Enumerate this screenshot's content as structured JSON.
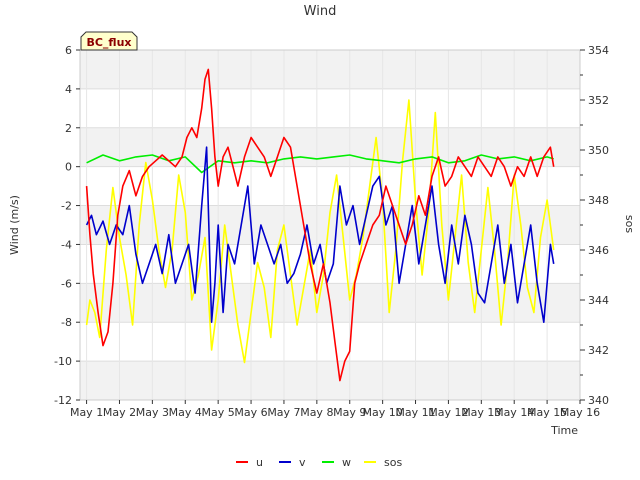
{
  "chart_data": {
    "type": "line",
    "title": "Wind",
    "badge": "BC_flux",
    "xlabel": "Time",
    "ylabel": "Wind (m/s)",
    "y2label": "sos",
    "xlim": [
      0.8,
      16
    ],
    "ylim": [
      -12,
      6
    ],
    "y2lim": [
      340,
      354
    ],
    "x_ticks": [
      {
        "v": 1,
        "label": "May 1"
      },
      {
        "v": 2,
        "label": "May 2"
      },
      {
        "v": 3,
        "label": "May 3"
      },
      {
        "v": 4,
        "label": "May 4"
      },
      {
        "v": 5,
        "label": "May 5"
      },
      {
        "v": 6,
        "label": "May 6"
      },
      {
        "v": 7,
        "label": "May 7"
      },
      {
        "v": 8,
        "label": "May 8"
      },
      {
        "v": 9,
        "label": "May 9"
      },
      {
        "v": 10,
        "label": "May 10"
      },
      {
        "v": 11,
        "label": "May 11"
      },
      {
        "v": 12,
        "label": "May 12"
      },
      {
        "v": 13,
        "label": "May 13"
      },
      {
        "v": 14,
        "label": "May 14"
      },
      {
        "v": 15,
        "label": "May 15"
      },
      {
        "v": 16,
        "label": "May 16"
      }
    ],
    "y_ticks": [
      -12,
      -10,
      -8,
      -6,
      -4,
      -2,
      0,
      2,
      4,
      6
    ],
    "y2_ticks": [
      340,
      342,
      344,
      346,
      348,
      350,
      352,
      354
    ],
    "grid": true,
    "legend_position": "bottom-center",
    "series": [
      {
        "name": "u",
        "color": "#ff0000",
        "axis": "left",
        "x": [
          1.0,
          1.1,
          1.2,
          1.35,
          1.5,
          1.65,
          1.8,
          1.95,
          2.1,
          2.3,
          2.5,
          2.7,
          2.9,
          3.1,
          3.3,
          3.5,
          3.7,
          3.9,
          4.05,
          4.2,
          4.35,
          4.5,
          4.6,
          4.7,
          4.8,
          4.9,
          5.0,
          5.15,
          5.3,
          5.45,
          5.6,
          5.8,
          6.0,
          6.2,
          6.4,
          6.6,
          6.8,
          7.0,
          7.2,
          7.4,
          7.6,
          7.8,
          8.0,
          8.2,
          8.4,
          8.55,
          8.7,
          8.85,
          9.0,
          9.15,
          9.3,
          9.5,
          9.7,
          9.9,
          10.1,
          10.3,
          10.5,
          10.7,
          10.9,
          11.1,
          11.3,
          11.5,
          11.7,
          11.9,
          12.1,
          12.3,
          12.5,
          12.7,
          12.9,
          13.1,
          13.3,
          13.5,
          13.7,
          13.9,
          14.1,
          14.3,
          14.5,
          14.7,
          14.9,
          15.1,
          15.2
        ],
        "y": [
          -1.0,
          -3.5,
          -5.5,
          -7.5,
          -9.2,
          -8.5,
          -6.0,
          -2.5,
          -1.0,
          -0.2,
          -1.5,
          -0.5,
          0.0,
          0.3,
          0.6,
          0.3,
          0.0,
          0.5,
          1.5,
          2.0,
          1.5,
          3.0,
          4.5,
          5.0,
          3.0,
          0.5,
          -1.0,
          0.5,
          1.0,
          0.0,
          -1.0,
          0.5,
          1.5,
          1.0,
          0.5,
          -0.5,
          0.5,
          1.5,
          1.0,
          -1.0,
          -3.0,
          -5.0,
          -6.5,
          -5.0,
          -7.0,
          -9.0,
          -11.0,
          -10.0,
          -9.5,
          -6.0,
          -5.0,
          -4.0,
          -3.0,
          -2.5,
          -1.0,
          -2.0,
          -3.0,
          -4.0,
          -3.0,
          -1.5,
          -2.5,
          -0.5,
          0.5,
          -1.0,
          -0.5,
          0.5,
          0.0,
          -0.5,
          0.5,
          0.0,
          -0.5,
          0.5,
          0.0,
          -1.0,
          0.0,
          -0.5,
          0.5,
          -0.5,
          0.5,
          1.0,
          0.0
        ]
      },
      {
        "name": "v",
        "color": "#0000cc",
        "axis": "left",
        "x": [
          1.0,
          1.15,
          1.3,
          1.5,
          1.7,
          1.9,
          2.1,
          2.3,
          2.5,
          2.7,
          2.9,
          3.1,
          3.3,
          3.5,
          3.7,
          3.9,
          4.1,
          4.3,
          4.5,
          4.65,
          4.8,
          4.9,
          5.0,
          5.15,
          5.3,
          5.5,
          5.7,
          5.9,
          6.1,
          6.3,
          6.5,
          6.7,
          6.9,
          7.1,
          7.3,
          7.5,
          7.7,
          7.9,
          8.1,
          8.3,
          8.5,
          8.7,
          8.9,
          9.1,
          9.3,
          9.5,
          9.7,
          9.9,
          10.1,
          10.3,
          10.5,
          10.7,
          10.9,
          11.1,
          11.3,
          11.5,
          11.7,
          11.9,
          12.1,
          12.3,
          12.5,
          12.7,
          12.9,
          13.1,
          13.3,
          13.5,
          13.7,
          13.9,
          14.1,
          14.3,
          14.5,
          14.7,
          14.9,
          15.1,
          15.2
        ],
        "y": [
          -3.0,
          -2.5,
          -3.5,
          -2.8,
          -4.0,
          -3.0,
          -3.5,
          -2.0,
          -4.5,
          -6.0,
          -5.0,
          -4.0,
          -5.5,
          -3.5,
          -6.0,
          -5.0,
          -4.0,
          -6.5,
          -2.0,
          1.0,
          -8.0,
          -6.0,
          -3.0,
          -7.5,
          -4.0,
          -5.0,
          -3.0,
          -1.0,
          -5.0,
          -3.0,
          -4.0,
          -5.0,
          -4.0,
          -6.0,
          -5.5,
          -4.5,
          -3.0,
          -5.0,
          -4.0,
          -6.0,
          -5.0,
          -1.0,
          -3.0,
          -2.0,
          -4.0,
          -2.5,
          -1.0,
          -0.5,
          -3.0,
          -2.0,
          -6.0,
          -4.0,
          -2.0,
          -5.0,
          -3.0,
          -1.0,
          -4.0,
          -6.0,
          -3.0,
          -5.0,
          -2.5,
          -4.0,
          -6.5,
          -7.0,
          -5.0,
          -3.0,
          -6.0,
          -4.0,
          -7.0,
          -5.0,
          -3.0,
          -6.0,
          -8.0,
          -4.0,
          -5.0
        ]
      },
      {
        "name": "w",
        "color": "#00ee00",
        "axis": "left",
        "x": [
          1.0,
          1.5,
          2.0,
          2.5,
          3.0,
          3.5,
          4.0,
          4.5,
          5.0,
          5.5,
          6.0,
          6.5,
          7.0,
          7.5,
          8.0,
          8.5,
          9.0,
          9.5,
          10.0,
          10.5,
          11.0,
          11.5,
          12.0,
          12.5,
          13.0,
          13.5,
          14.0,
          14.5,
          15.0,
          15.2
        ],
        "y": [
          0.2,
          0.6,
          0.3,
          0.5,
          0.6,
          0.3,
          0.5,
          -0.3,
          0.3,
          0.2,
          0.3,
          0.2,
          0.4,
          0.5,
          0.4,
          0.5,
          0.6,
          0.4,
          0.3,
          0.2,
          0.4,
          0.5,
          0.2,
          0.3,
          0.6,
          0.4,
          0.5,
          0.3,
          0.5,
          0.4
        ]
      },
      {
        "name": "sos",
        "color": "#ffff00",
        "axis": "right",
        "x": [
          1.0,
          1.1,
          1.25,
          1.4,
          1.6,
          1.8,
          2.0,
          2.2,
          2.4,
          2.6,
          2.8,
          3.0,
          3.2,
          3.4,
          3.6,
          3.8,
          4.0,
          4.2,
          4.4,
          4.6,
          4.8,
          5.0,
          5.2,
          5.4,
          5.6,
          5.8,
          6.0,
          6.2,
          6.4,
          6.6,
          6.8,
          7.0,
          7.2,
          7.4,
          7.6,
          7.8,
          8.0,
          8.2,
          8.4,
          8.6,
          8.8,
          9.0,
          9.2,
          9.4,
          9.6,
          9.8,
          10.0,
          10.2,
          10.4,
          10.6,
          10.8,
          11.0,
          11.2,
          11.4,
          11.6,
          11.8,
          12.0,
          12.2,
          12.4,
          12.6,
          12.8,
          13.0,
          13.2,
          13.4,
          13.6,
          13.8,
          14.0,
          14.2,
          14.4,
          14.6,
          14.8,
          15.0,
          15.2
        ],
        "y": [
          343.0,
          344.0,
          343.5,
          342.5,
          346.0,
          348.5,
          346.5,
          345.0,
          343.0,
          347.0,
          349.5,
          348.0,
          346.0,
          344.5,
          346.0,
          349.0,
          347.5,
          344.0,
          345.0,
          346.5,
          342.0,
          344.0,
          347.0,
          345.0,
          343.0,
          341.5,
          343.5,
          345.5,
          344.5,
          342.5,
          346.0,
          347.0,
          345.0,
          343.0,
          344.5,
          346.0,
          343.5,
          345.0,
          347.5,
          349.0,
          346.5,
          344.0,
          345.0,
          346.5,
          348.5,
          350.5,
          348.0,
          343.5,
          346.0,
          349.5,
          352.0,
          348.0,
          345.0,
          347.5,
          351.5,
          347.0,
          344.0,
          346.5,
          349.0,
          345.5,
          343.5,
          346.0,
          348.5,
          346.0,
          343.0,
          345.5,
          349.0,
          347.0,
          344.5,
          343.5,
          346.5,
          348.0,
          346.0
        ]
      }
    ]
  }
}
